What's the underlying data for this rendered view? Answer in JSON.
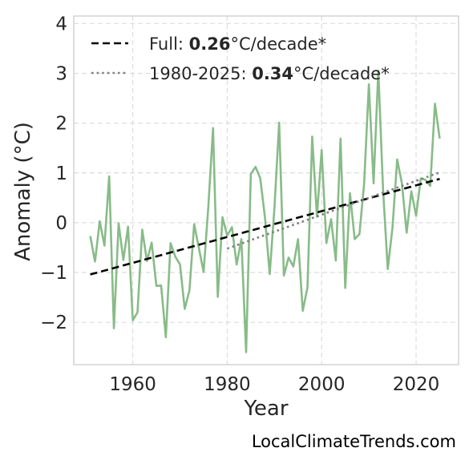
{
  "chart_data": {
    "type": "line",
    "xlabel": "Year",
    "ylabel": "Anomaly (°C)",
    "xlim": [
      1947.5,
      2029
    ],
    "ylim": [
      -2.85,
      4.15
    ],
    "xticks": [
      1960,
      1980,
      2000,
      2020
    ],
    "yticks": [
      -2,
      -1,
      0,
      1,
      2,
      3,
      4
    ],
    "ytick_labels": [
      "−2",
      "−1",
      "0",
      "1",
      "2",
      "3",
      "4"
    ],
    "grid": true,
    "legend_position": "top-left",
    "series": [
      {
        "kind": "observed",
        "color": "#88bb88",
        "x": [
          1951,
          1952,
          1953,
          1954,
          1955,
          1956,
          1957,
          1958,
          1959,
          1960,
          1961,
          1962,
          1963,
          1964,
          1965,
          1966,
          1967,
          1968,
          1969,
          1970,
          1971,
          1972,
          1973,
          1974,
          1975,
          1976,
          1977,
          1978,
          1979,
          1980,
          1981,
          1982,
          1983,
          1984,
          1985,
          1986,
          1987,
          1988,
          1989,
          1990,
          1991,
          1992,
          1993,
          1994,
          1995,
          1996,
          1997,
          1998,
          1999,
          2000,
          2001,
          2002,
          2003,
          2004,
          2005,
          2006,
          2007,
          2008,
          2009,
          2010,
          2011,
          2012,
          2013,
          2014,
          2015,
          2016,
          2017,
          2018,
          2019,
          2020,
          2021,
          2022,
          2023,
          2024,
          2025
        ],
        "values": [
          -0.27,
          -0.78,
          0.03,
          -0.46,
          0.93,
          -2.12,
          -0.01,
          -0.75,
          -0.08,
          -1.96,
          -1.8,
          -0.14,
          -0.77,
          -0.4,
          -1.27,
          -1.26,
          -2.3,
          -0.41,
          -0.68,
          -0.84,
          -1.73,
          -1.36,
          -0.03,
          -0.51,
          -0.99,
          0.32,
          1.9,
          -1.49,
          0.11,
          -0.26,
          -0.09,
          -0.84,
          -0.33,
          -2.6,
          0.98,
          1.12,
          0.89,
          0.1,
          -1.03,
          0.29,
          2.01,
          -1.06,
          -0.7,
          -0.88,
          -0.33,
          -1.77,
          -1.3,
          1.73,
          0.12,
          1.46,
          -0.41,
          0.07,
          -0.76,
          1.69,
          -1.31,
          0.59,
          -0.33,
          -0.23,
          0.79,
          2.78,
          0.79,
          3.05,
          0.68,
          -0.93,
          -0.1,
          1.27,
          0.79,
          -0.2,
          0.63,
          0.14,
          0.89,
          0.86,
          0.74,
          2.39,
          1.69
        ]
      },
      {
        "kind": "trend-full",
        "name": "Full: ",
        "name_bold": "0.26",
        "name_suffix": "°C/decade*",
        "color": "#000000",
        "x": [
          1951,
          2025
        ],
        "values": [
          -1.04,
          0.88
        ]
      },
      {
        "kind": "trend-recent",
        "name": "1980-2025: ",
        "name_bold": "0.34",
        "name_suffix": "°C/decade*",
        "color": "#808080",
        "x": [
          1980,
          2025
        ],
        "values": [
          -0.52,
          1.01
        ]
      }
    ]
  },
  "watermark": "LocalClimateTrends.com"
}
